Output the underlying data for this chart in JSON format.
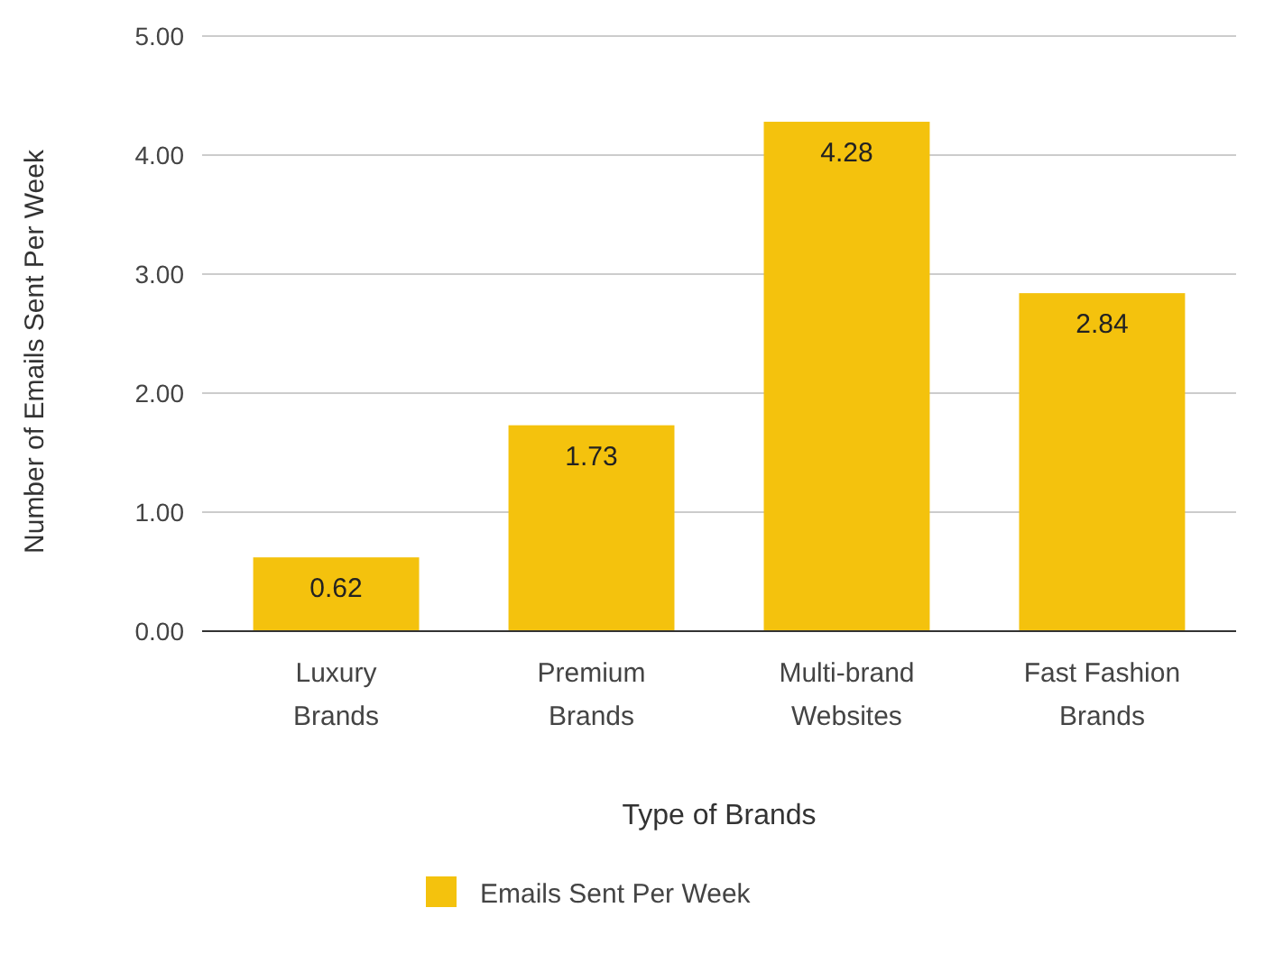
{
  "chart_data": {
    "type": "bar",
    "xlabel": "Type of Brands",
    "ylabel": "Number of Emails Sent Per Week",
    "categories": [
      "Luxury Brands",
      "Premium Brands",
      "Multi-brand Websites",
      "Fast Fashion Brands"
    ],
    "series": [
      {
        "name": "Emails Sent Per Week",
        "color": "#f4c20d",
        "values": [
          0.62,
          1.73,
          4.28,
          2.84
        ]
      }
    ],
    "ylim": [
      0,
      5
    ],
    "yticks": [
      {
        "value": 0,
        "label": "0.00"
      },
      {
        "value": 1,
        "label": "1.00"
      },
      {
        "value": 2,
        "label": "2.00"
      },
      {
        "value": 3,
        "label": "3.00"
      },
      {
        "value": 4,
        "label": "4.00"
      },
      {
        "value": 5,
        "label": "5.00"
      }
    ],
    "grid": "y",
    "legend": "bottom",
    "data_labels": true
  }
}
